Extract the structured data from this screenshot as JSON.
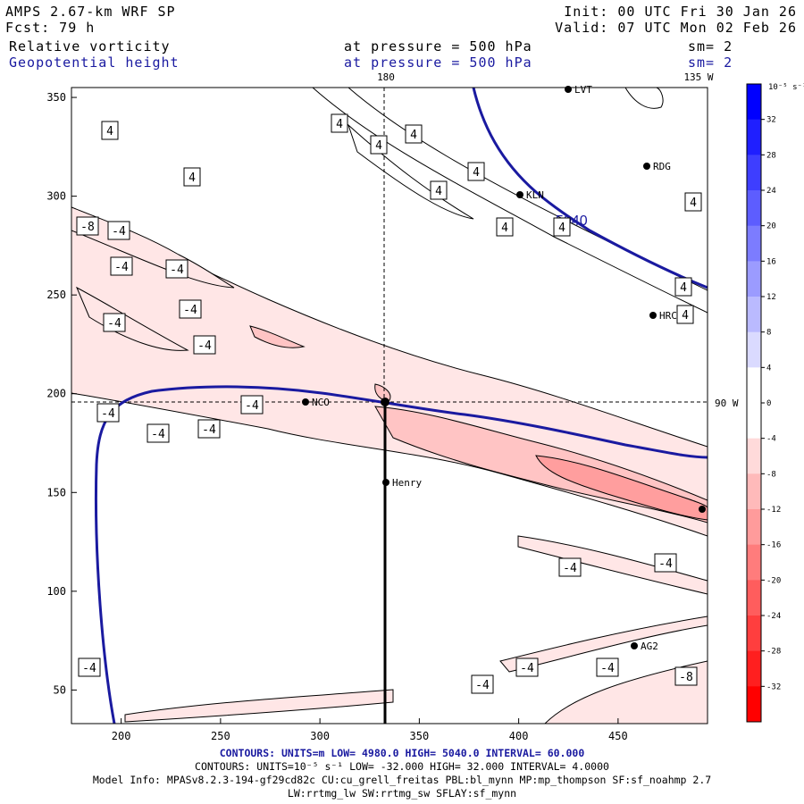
{
  "header": {
    "model": "AMPS 2.67-km WRF SP",
    "forecast": "Fcst:   79 h",
    "init": "Init: 00 UTC Fri 30 Jan 26",
    "valid": "Valid: 07 UTC Mon 02 Feb 26",
    "field1": "Relative vorticity",
    "field2": "Geopotential height",
    "pressure1": "at pressure =  500 hPa",
    "pressure2": "at pressure =  500 hPa",
    "smooth1": "sm= 2",
    "smooth2": "sm= 2"
  },
  "map": {
    "lon_top_left": "180",
    "lon_top_right": "135 W",
    "lon_right": "90 W",
    "x_ticks": [
      "200",
      "250",
      "300",
      "350",
      "400",
      "450"
    ],
    "y_ticks": [
      "50",
      "100",
      "150",
      "200",
      "250",
      "300",
      "350"
    ],
    "stations": [
      "LVT",
      "RDG",
      "KLN",
      "HRC",
      "NCO",
      "Henry",
      "AG2"
    ],
    "height_label": "5040",
    "vort_pos_labels": [
      "4",
      "4",
      "4",
      "4",
      "4",
      "4",
      "4",
      "4",
      "4",
      "4",
      "4",
      "4"
    ],
    "vort_neg_labels": [
      "-8",
      "-4",
      "-4",
      "-4",
      "-4",
      "-4",
      "-4",
      "-4",
      "-4",
      "-4",
      "-4",
      "-4",
      "-4",
      "-4",
      "-4",
      "-4",
      "-4",
      "-8"
    ]
  },
  "colorbar": {
    "unit": "10⁻⁵ s⁻¹",
    "ticks": [
      "32",
      "28",
      "24",
      "20",
      "16",
      "12",
      "8",
      "4",
      "0",
      "-4",
      "-8",
      "-12",
      "-16",
      "-20",
      "-24",
      "-28",
      "-32"
    ],
    "colors": [
      "#0000ff",
      "#1f1fff",
      "#3e3eff",
      "#5d5dff",
      "#7c7cff",
      "#9b9bff",
      "#babaff",
      "#dadaff",
      "#ffffff",
      "#ffffff",
      "#ffdada",
      "#ffbaba",
      "#ff9b9b",
      "#ff7c7c",
      "#ff5d5d",
      "#ff3e3e",
      "#ff1f1f",
      "#ff0000"
    ]
  },
  "footer": {
    "contours_height": "CONTOURS:  UNITS=m  LOW=  4980.0        HIGH=  5040.0        INTERVAL=   60.000",
    "contours_vort": "CONTOURS:  UNITS=10⁻⁵ s⁻¹  LOW=  -32.000        HIGH=  32.000        INTERVAL=   4.0000",
    "model_info": "Model Info: MPASv8.2.3-194-gf29cd82c CU:cu_grell_freitas PBL:bl_mynn MP:mp_thompson SF:sf_noahmp 2.7",
    "model_info2": "LW:rrtmg_lw SW:rrtmg_sw SFLAY:sf_mynn"
  },
  "colors": {
    "height_contour": "#1a1aa0",
    "positive": "#0000ff",
    "negative": "#ff0000"
  }
}
